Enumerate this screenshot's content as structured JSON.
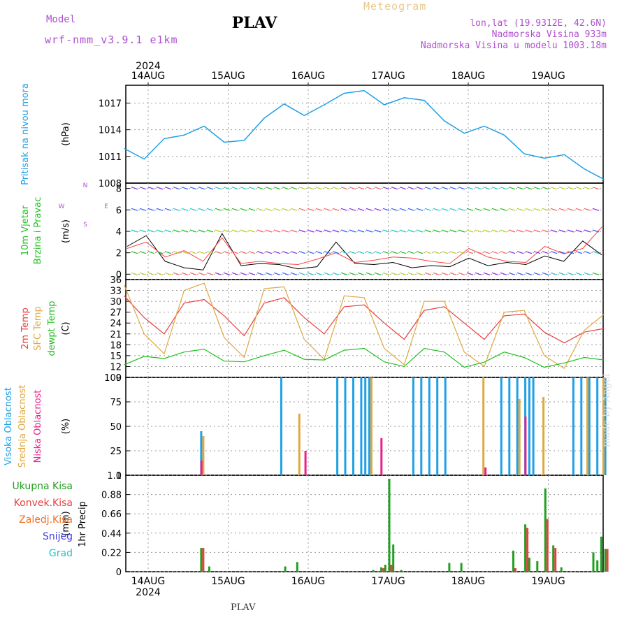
{
  "header": {
    "title": "PLAV",
    "model_label": "Model",
    "model_value": "wrf-nmm_v3.9.1  e1km",
    "product": "Meteogram",
    "location": "lon,lat (19.9312E, 42.6N)",
    "elevation": "Nadmorska Visina 933m",
    "model_elevation": "Nadmorska Visina u modelu 1003.18m"
  },
  "footer": {
    "station": "PLAV"
  },
  "watermark": "made by Angel",
  "colors": {
    "pressure": "#1fa0e6",
    "wind_speed": "#000000",
    "wind_gust": "#ff4040",
    "temp_2m": "#e84040",
    "temp_sfc": "#e0a840",
    "temp_dew": "#20c020",
    "cloud_high": "#1fa0e6",
    "cloud_mid": "#e0a840",
    "cloud_low": "#e8208a",
    "precip_total": "#20a020",
    "precip_conv": "#e84040",
    "precip_frozen": "#f07020",
    "precip_snow": "#4040e0",
    "precip_graupel": "#20c8c8",
    "ylabel_pressure": "#1fa0e6",
    "ylabel_wind": "#20c020",
    "ylabel_tempdew": "#20c020"
  },
  "chart_data": [
    {
      "type": "line",
      "panel": "pressure",
      "ylabel": "Pritisak na nivou mora",
      "unit": "(hPa)",
      "ylim": [
        1008,
        1019
      ],
      "yticks": [
        1008,
        1011,
        1014,
        1017
      ],
      "x_dates_top": [
        "14AUG",
        "15AUG",
        "16AUG",
        "17AUG",
        "18AUG",
        "19AUG"
      ],
      "year_top": "2024",
      "x_days": [
        0,
        0.25,
        0.5,
        0.75,
        1,
        1.25,
        1.5,
        1.75,
        2,
        2.25,
        2.5,
        2.75,
        3,
        3.25,
        3.5,
        3.75,
        4,
        4.25,
        4.5,
        4.75,
        5,
        5.25,
        5.5,
        5.75,
        6
      ],
      "values": [
        1011.9,
        1010.7,
        1013.0,
        1013.4,
        1014.4,
        1012.6,
        1012.8,
        1015.3,
        1016.9,
        1015.6,
        1016.8,
        1018.1,
        1018.4,
        1016.8,
        1017.6,
        1017.3,
        1015.0,
        1013.6,
        1014.4,
        1013.4,
        1011.3,
        1010.8,
        1011.2,
        1009.6,
        1008.4
      ],
      "grid": true
    },
    {
      "type": "line",
      "panel": "wind",
      "ylabel": "10m Vjetar",
      "ylabel2": "Brzina i Pravac",
      "unit": "(m/s)",
      "ylim": [
        -0.5,
        8.5
      ],
      "yticks": [
        0,
        2,
        4,
        6,
        8
      ],
      "compass": [
        "N",
        "E",
        "S",
        "W"
      ],
      "series": [
        {
          "values": [
            2.6,
            3.6,
            1.2,
            0.6,
            0.4,
            3.8,
            0.8,
            1.0,
            0.9,
            0.5,
            0.7,
            3.0,
            1.0,
            0.9,
            1.1,
            0.6,
            0.8,
            0.7,
            1.5,
            0.8,
            1.1,
            0.9,
            1.7,
            1.2,
            3.1,
            1.8
          ]
        },
        {
          "values": [
            2.4,
            3.0,
            1.6,
            2.2,
            1.2,
            3.4,
            1.0,
            1.2,
            1.0,
            0.9,
            1.4,
            2.0,
            1.1,
            1.3,
            1.6,
            1.5,
            1.2,
            1.0,
            2.4,
            1.6,
            1.2,
            1.1,
            2.6,
            1.9,
            2.4,
            4.4
          ]
        }
      ]
    },
    {
      "type": "line",
      "panel": "temperature",
      "ylabel": "2m Temp",
      "ylabel2": "SFC Temp",
      "ylabel3": "dewpt Temp",
      "unit": "(C)",
      "ylim": [
        9,
        36
      ],
      "yticks": [
        9,
        12,
        15,
        18,
        21,
        24,
        27,
        30,
        33,
        36
      ],
      "x_days": [
        0,
        0.25,
        0.5,
        0.75,
        1,
        1.25,
        1.5,
        1.75,
        2,
        2.25,
        2.5,
        2.75,
        3,
        3.25,
        3.5,
        3.75,
        4,
        4.25,
        4.5,
        4.75,
        5,
        5.25,
        5.5,
        5.75,
        6
      ],
      "series": [
        {
          "values": [
            31.5,
            25.5,
            21.0,
            29.5,
            30.5,
            26.0,
            20.5,
            29.5,
            31.0,
            25.5,
            21.0,
            28.5,
            29.0,
            24.0,
            19.5,
            27.5,
            28.5,
            24.0,
            19.5,
            26.0,
            26.5,
            21.5,
            18.5,
            21.5,
            22.5
          ]
        },
        {
          "values": [
            34.5,
            21.0,
            15.5,
            33.0,
            35.0,
            20.0,
            14.5,
            33.5,
            34.0,
            19.5,
            14.0,
            31.5,
            31.0,
            17.0,
            12.5,
            30.0,
            30.0,
            16.0,
            12.0,
            27.0,
            27.5,
            15.0,
            11.5,
            22.0,
            26.5
          ]
        },
        {
          "values": [
            12.5,
            14.8,
            14.2,
            16.0,
            16.8,
            13.5,
            13.3,
            15.0,
            16.5,
            14.0,
            13.8,
            16.5,
            17.0,
            13.3,
            12.0,
            17.0,
            16.0,
            11.8,
            13.2,
            16.0,
            14.5,
            11.8,
            13.0,
            14.5,
            13.8
          ]
        }
      ]
    },
    {
      "type": "bar",
      "panel": "clouds",
      "ylabel": "Visoka Oblacnost",
      "ylabel2": "Srednja Oblacnost",
      "ylabel3": "Niska Oblacnost",
      "unit": "(%)",
      "ylim": [
        0,
        100
      ],
      "yticks": [
        0,
        25,
        50,
        75,
        100
      ],
      "series": [
        {
          "x_days": [
            0.95,
            1.95,
            2.65,
            2.75,
            2.85,
            2.95,
            3.0,
            3.05,
            3.6,
            3.7,
            3.8,
            3.9,
            4.0,
            4.7,
            4.8,
            4.9,
            5.0,
            5.05,
            5.1,
            5.6,
            5.7,
            5.8,
            5.9,
            6.0
          ],
          "values": [
            45,
            100,
            100,
            100,
            100,
            100,
            100,
            100,
            100,
            100,
            100,
            100,
            100,
            100,
            100,
            100,
            100,
            100,
            100,
            100,
            100,
            100,
            100,
            100
          ]
        },
        {
          "x_days": [
            0.95,
            2.15,
            3.05,
            4.45,
            4.9,
            5.2,
            5.75,
            5.95
          ],
          "values": [
            40,
            63,
            100,
            100,
            78,
            80,
            100,
            100
          ]
        },
        {
          "x_days": [
            0.9,
            2.2,
            3.15,
            4.45,
            4.95
          ],
          "values": [
            15,
            25,
            38,
            8,
            60
          ]
        }
      ]
    },
    {
      "type": "bar",
      "panel": "precip",
      "ylabel": "1hr Precip",
      "unit": "(mm)",
      "ylim": [
        0,
        1.1
      ],
      "yticks": [
        0,
        0.22,
        0.44,
        0.66,
        0.88,
        1.1
      ],
      "x_dates_bottom": [
        "14AUG",
        "15AUG",
        "16AUG",
        "17AUG",
        "18AUG",
        "19AUG"
      ],
      "year_bottom": "2024",
      "legend": [
        "Ukupna  Kisa",
        "Konvek.Kisa",
        "Zaledj.Kisa",
        "Snijeg",
        "Grad"
      ],
      "series": [
        {
          "x_days": [
            0.95,
            1.05,
            2.0,
            2.15,
            3.1,
            3.2,
            3.25,
            3.3,
            3.35,
            3.45,
            4.05,
            4.2,
            4.85,
            5.0,
            5.05,
            5.15,
            5.25,
            5.35,
            5.45,
            5.85,
            5.9,
            5.95,
            6.0
          ],
          "values": [
            0.27,
            0.06,
            0.06,
            0.11,
            0.02,
            0.05,
            0.08,
            1.06,
            0.31,
            0.02,
            0.1,
            0.1,
            0.24,
            0.54,
            0.16,
            0.12,
            0.95,
            0.3,
            0.05,
            0.22,
            0.13,
            0.4,
            0.26
          ]
        },
        {
          "x_days": [
            0.95,
            3.2,
            3.3,
            4.85,
            5.0,
            5.25,
            5.35,
            6.0
          ],
          "values": [
            0.27,
            0.04,
            0.08,
            0.04,
            0.5,
            0.6,
            0.27,
            0.26
          ]
        }
      ]
    }
  ]
}
